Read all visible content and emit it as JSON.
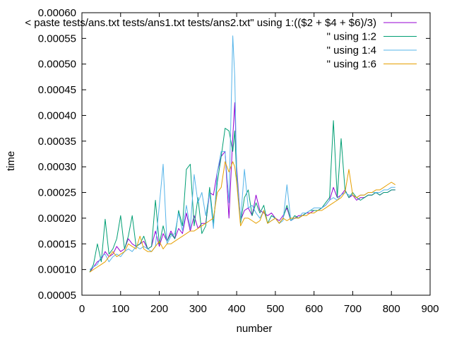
{
  "chart_data": {
    "type": "line",
    "title": "",
    "xlabel": "number",
    "ylabel": "time",
    "xlim": [
      0,
      900
    ],
    "ylim": [
      5e-05,
      0.0006
    ],
    "grid": false,
    "legend_position": "top-right",
    "x_ticks": [
      "0",
      "100",
      "200",
      "300",
      "400",
      "500",
      "600",
      "700",
      "800",
      "900"
    ],
    "y_ticks": [
      "0.00005",
      "0.00010",
      "0.00015",
      "0.00020",
      "0.00025",
      "0.00030",
      "0.00035",
      "0.00040",
      "0.00045",
      "0.00050",
      "0.00055",
      "0.00060"
    ],
    "x": [
      20,
      30,
      40,
      50,
      60,
      70,
      80,
      90,
      100,
      110,
      120,
      130,
      140,
      150,
      160,
      170,
      180,
      190,
      200,
      210,
      220,
      230,
      240,
      250,
      260,
      270,
      280,
      290,
      300,
      310,
      320,
      330,
      340,
      350,
      360,
      370,
      380,
      390,
      395,
      400,
      410,
      420,
      430,
      440,
      450,
      460,
      470,
      480,
      490,
      500,
      510,
      520,
      530,
      540,
      550,
      560,
      570,
      580,
      590,
      600,
      610,
      620,
      630,
      640,
      650,
      660,
      670,
      680,
      690,
      700,
      710,
      720,
      730,
      740,
      750,
      760,
      770,
      780,
      790,
      800,
      810
    ],
    "series": [
      {
        "name": "< paste tests/ans.txt tests/ans1.txt tests/ans2.txt\" using 1:(($2 + $4 + $6)/3)",
        "color": "#9400d3",
        "values": [
          9.5e-05,
          0.000105,
          0.000115,
          0.00012,
          0.000135,
          0.000125,
          0.00013,
          0.000145,
          0.000135,
          0.00014,
          0.00016,
          0.00015,
          0.000145,
          0.00015,
          0.000155,
          0.00014,
          0.000145,
          0.000175,
          0.000145,
          0.00017,
          0.000155,
          0.000175,
          0.00016,
          0.00018,
          0.00017,
          0.00021,
          0.000175,
          0.000205,
          0.00018,
          0.00019,
          0.00019,
          0.00025,
          0.000245,
          0.00029,
          0.00032,
          0.00033,
          0.0002,
          0.000358,
          0.000425,
          0.0003,
          0.000195,
          0.000215,
          0.00022,
          0.000205,
          0.000245,
          0.000215,
          0.00021,
          0.000205,
          0.00021,
          0.0002,
          0.000195,
          0.000205,
          0.00022,
          0.000195,
          0.0002,
          0.000205,
          0.000205,
          0.00021,
          0.00021,
          0.000215,
          0.000215,
          0.00022,
          0.000225,
          0.000235,
          0.00026,
          0.00024,
          0.000245,
          0.000255,
          0.00024,
          0.000245,
          0.000235,
          0.00024,
          0.00024,
          0.000245,
          0.000245,
          0.00025,
          0.000245,
          0.00025,
          0.00025,
          0.000255,
          0.000255
        ]
      },
      {
        "name": "\" using 1:2",
        "color": "#009e73",
        "values": [
          9.5e-05,
          0.00011,
          0.00015,
          0.000115,
          0.000198,
          0.00013,
          0.00014,
          0.00016,
          0.000205,
          0.00014,
          0.000165,
          0.000205,
          0.000145,
          0.00015,
          0.000165,
          0.00014,
          0.000145,
          0.000235,
          0.00015,
          0.000185,
          0.000155,
          0.00017,
          0.00016,
          0.000215,
          0.000185,
          0.000295,
          0.000305,
          0.000185,
          0.00024,
          0.00017,
          0.000185,
          0.00026,
          0.00019,
          0.00027,
          0.00032,
          0.000375,
          0.00037,
          0.00033,
          0.00037,
          0.00028,
          0.00019,
          0.00024,
          0.000255,
          0.000205,
          0.00023,
          0.00021,
          0.000225,
          0.00019,
          0.000205,
          0.0002,
          0.00019,
          0.0002,
          0.000225,
          0.000195,
          0.000205,
          0.0002,
          0.000205,
          0.00021,
          0.000215,
          0.000215,
          0.000215,
          0.00022,
          0.00023,
          0.00024,
          0.00039,
          0.00024,
          0.000355,
          0.000255,
          0.00024,
          0.00025,
          0.00024,
          0.000235,
          0.00024,
          0.000245,
          0.000245,
          0.00025,
          0.000245,
          0.00025,
          0.00025,
          0.000255,
          0.000255
        ]
      },
      {
        "name": "\" using 1:4",
        "color": "#56b4e9",
        "values": [
          0.0001,
          0.000105,
          0.00011,
          0.000125,
          0.00013,
          0.000115,
          0.000125,
          0.00013,
          0.000125,
          0.000135,
          0.00014,
          0.000135,
          0.000145,
          0.00014,
          0.000145,
          0.00014,
          0.000135,
          0.000145,
          0.000225,
          0.000305,
          0.00015,
          0.000165,
          0.00017,
          0.00021,
          0.000175,
          0.000225,
          0.00018,
          0.000285,
          0.00023,
          0.00025,
          0.000205,
          0.00025,
          0.00018,
          0.00029,
          0.00033,
          0.00033,
          0.00023,
          0.000555,
          0.000475,
          0.00029,
          0.000195,
          0.000295,
          0.00022,
          0.000225,
          0.00021,
          0.0002,
          0.000215,
          0.00019,
          0.000195,
          0.0002,
          0.00019,
          0.000195,
          0.000265,
          0.000195,
          0.0002,
          0.0002,
          0.00021,
          0.00021,
          0.000215,
          0.00022,
          0.00022,
          0.00022,
          0.000225,
          0.000235,
          0.00024,
          0.000235,
          0.000245,
          0.00025,
          0.000245,
          0.000245,
          0.00024,
          0.000245,
          0.000245,
          0.00025,
          0.00025,
          0.00025,
          0.00025,
          0.000255,
          0.000255,
          0.00026,
          0.00026
        ]
      },
      {
        "name": "\" using 1:6",
        "color": "#e69f00",
        "values": [
          9.5e-05,
          0.0001,
          0.000105,
          0.00011,
          0.000115,
          0.000125,
          0.000135,
          0.000125,
          0.00013,
          0.000135,
          0.00015,
          0.000145,
          0.00014,
          0.000165,
          0.00014,
          0.000135,
          0.000135,
          0.000145,
          0.000155,
          0.00014,
          0.00015,
          0.00015,
          0.000155,
          0.00016,
          0.000165,
          0.00017,
          0.000175,
          0.000175,
          0.00018,
          0.000185,
          0.00019,
          0.000195,
          0.0002,
          0.00025,
          0.00026,
          0.00031,
          0.00029,
          0.00031,
          0.0003,
          0.00027,
          0.000185,
          0.0002,
          0.0002,
          0.000195,
          0.00019,
          0.000195,
          0.000215,
          0.00019,
          0.000195,
          0.0002,
          0.00019,
          0.0002,
          0.000195,
          0.0002,
          0.0002,
          0.0002,
          0.000205,
          0.000205,
          0.00021,
          0.00021,
          0.000215,
          0.000215,
          0.00022,
          0.000225,
          0.00023,
          0.000235,
          0.00024,
          0.00025,
          0.000295,
          0.000245,
          0.00024,
          0.000245,
          0.000245,
          0.00025,
          0.00025,
          0.000255,
          0.000255,
          0.00026,
          0.000265,
          0.00027,
          0.000265
        ]
      }
    ]
  }
}
